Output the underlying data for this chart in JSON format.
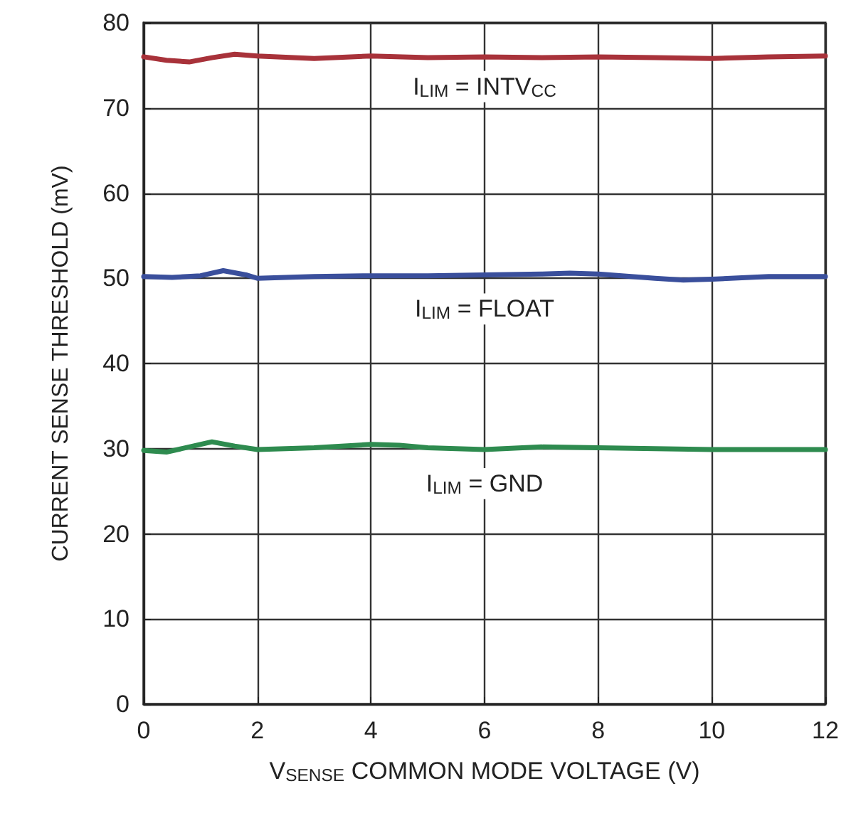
{
  "chart_data": {
    "type": "line",
    "xlabel": "V$_{SENSE}$ COMMON MODE VOLTAGE (V)",
    "ylabel": "CURRENT SENSE THRESHOLD (mV)",
    "xlim": [
      0,
      12
    ],
    "xticks": [
      0,
      2,
      4,
      6,
      8,
      10,
      12
    ],
    "ylim": [
      0,
      80
    ],
    "yticks": [
      0,
      10,
      20,
      30,
      40,
      50,
      60,
      70,
      80
    ],
    "grid": true,
    "marker": "none",
    "line_style": "solid",
    "series": [
      {
        "name": "I$_{LIM}$ = INTV$_{CC}$",
        "color": "#a8323a",
        "x": [
          0,
          0.4,
          0.8,
          1.2,
          1.6,
          2,
          3,
          4,
          5,
          6,
          7,
          8,
          9,
          10,
          11,
          12
        ],
        "values": [
          76,
          75.6,
          75.4,
          75.9,
          76.3,
          76.1,
          75.8,
          76.1,
          75.9,
          76,
          75.9,
          76,
          75.9,
          75.8,
          76,
          76.1
        ]
      },
      {
        "name": "I$_{LIM}$ = FLOAT",
        "color": "#3a4f9c",
        "x": [
          0,
          0.5,
          1,
          1.4,
          1.8,
          2,
          3,
          4,
          5,
          6,
          7,
          7.5,
          8,
          9,
          9.5,
          10,
          11,
          12
        ],
        "values": [
          50.2,
          50.1,
          50.3,
          50.9,
          50.4,
          50,
          50.2,
          50.3,
          50.3,
          50.4,
          50.5,
          50.6,
          50.5,
          50,
          49.8,
          49.9,
          50.2,
          50.2
        ]
      },
      {
        "name": "I$_{LIM}$ = GND",
        "color": "#2e8b4f",
        "x": [
          0,
          0.4,
          0.8,
          1.2,
          1.6,
          2,
          3,
          4,
          4.5,
          5,
          6,
          7,
          8,
          9,
          10,
          11,
          12
        ],
        "values": [
          29.8,
          29.6,
          30.2,
          30.8,
          30.3,
          29.9,
          30.1,
          30.5,
          30.4,
          30.1,
          29.9,
          30.2,
          30.1,
          30,
          29.9,
          29.9,
          29.9
        ]
      }
    ]
  }
}
